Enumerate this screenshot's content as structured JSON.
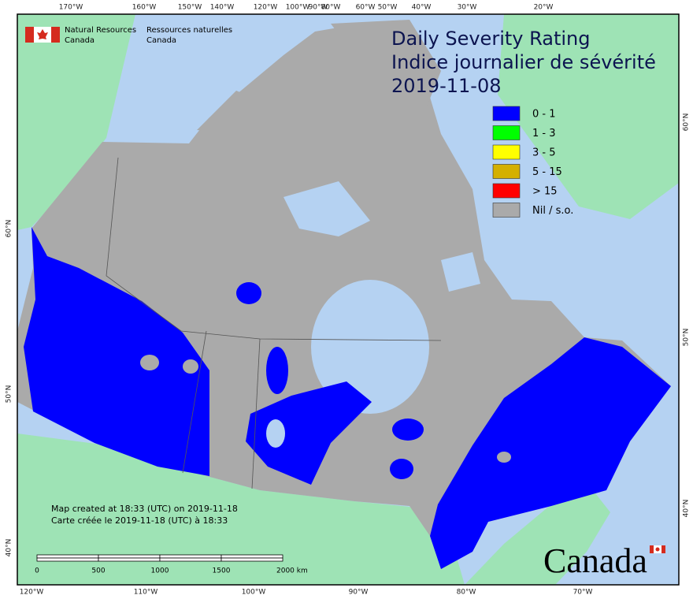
{
  "header": {
    "english": [
      "Natural Resources",
      "Canada"
    ],
    "french": [
      "Ressources naturelles",
      "Canada"
    ]
  },
  "title": [
    "Daily Severity Rating",
    "Indice journalier de sévérité",
    "2019-11-08"
  ],
  "legend": {
    "items": [
      {
        "label": "0 - 1",
        "color": "#0000ff"
      },
      {
        "label": "1 - 3",
        "color": "#00ff00"
      },
      {
        "label": "3 - 5",
        "color": "#ffff00"
      },
      {
        "label": "5 - 15",
        "color": "#d4b000"
      },
      {
        "label": "> 15",
        "color": "#ff0000"
      },
      {
        "label": "Nil / s.o.",
        "color": "#aaaaaa"
      }
    ]
  },
  "graticule": {
    "top": [
      "170°W",
      "160°W",
      "150°W",
      "140°W",
      "120°W",
      "100°W",
      "90°W",
      "80°W",
      "60°W",
      "50°W",
      "40°W",
      "30°W",
      "20°W"
    ],
    "bottom": [
      "120°W",
      "110°W",
      "100°W",
      "90°W",
      "80°W",
      "70°W"
    ],
    "left": [
      "60°N",
      "50°N",
      "40°N"
    ],
    "right": [
      "60°N",
      "50°N",
      "40°N"
    ]
  },
  "scale_bar": [
    "0",
    "500",
    "1000",
    "1500",
    "2000  km"
  ],
  "notes": [
    "Map created at 18:33 (UTC) on 2019-11-18",
    "Carte créée le 2019-11-18 (UTC) à 18:33"
  ],
  "wordmark": "Canada"
}
